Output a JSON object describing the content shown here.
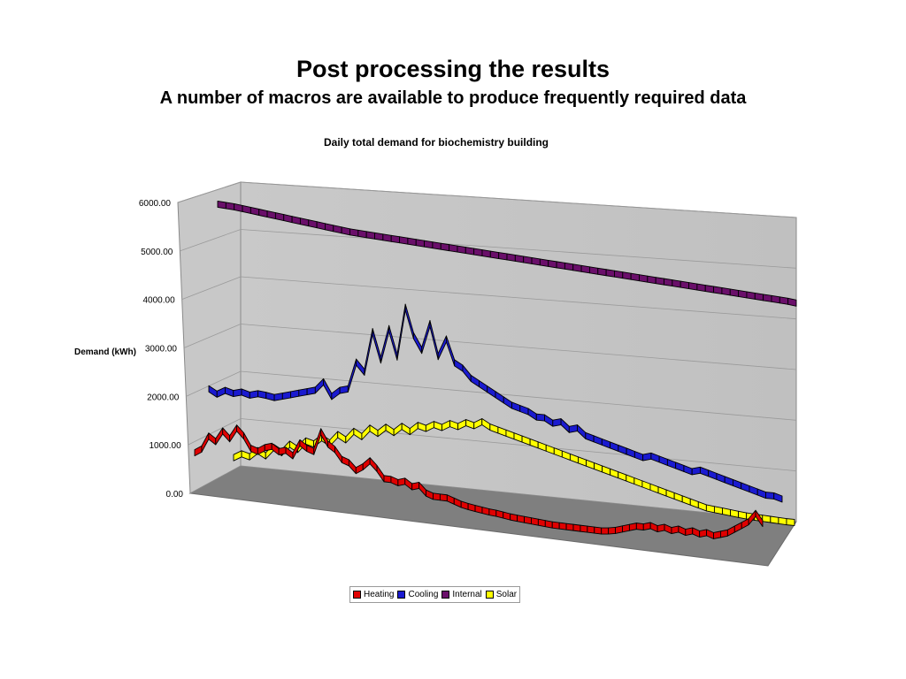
{
  "slide": {
    "title": "Post processing the results",
    "subtitle": "A number of macros are available to produce frequently required data"
  },
  "chart_data": {
    "type": "line",
    "view": "3d",
    "title": "Daily total demand for biochemistry building",
    "xlabel": "",
    "ylabel": "Demand (kWh)",
    "ylim": [
      0,
      6000
    ],
    "yticks": [
      "0.00",
      "1000.00",
      "2000.00",
      "3000.00",
      "4000.00",
      "5000.00",
      "6000.00"
    ],
    "grid": true,
    "legend_position": "bottom",
    "x": "day of year (1–365, tick labels not shown)",
    "series": [
      {
        "name": "Heating",
        "color": "#e00000",
        "values": [
          700,
          800,
          1100,
          1000,
          1250,
          1100,
          1350,
          1200,
          950,
          900,
          1000,
          1050,
          950,
          1000,
          900,
          1200,
          1100,
          1050,
          1500,
          1250,
          1150,
          950,
          900,
          750,
          850,
          1000,
          850,
          650,
          650,
          600,
          650,
          550,
          600,
          450,
          400,
          400,
          400,
          350,
          300,
          270,
          250,
          230,
          210,
          200,
          180,
          160,
          150,
          140,
          130,
          120,
          110,
          100,
          100,
          100,
          100,
          100,
          100,
          100,
          100,
          120,
          150,
          200,
          250,
          300,
          300,
          350,
          300,
          350,
          300,
          350,
          300,
          350,
          300,
          350,
          300,
          350,
          400,
          500,
          600,
          700,
          900,
          700
        ]
      },
      {
        "name": "Cooling",
        "color": "#1a1ad0",
        "values": [
          1900,
          1800,
          1900,
          1850,
          1900,
          1850,
          1900,
          1880,
          1850,
          1900,
          1950,
          2000,
          2050,
          2100,
          2300,
          2000,
          2150,
          2200,
          2800,
          2600,
          3500,
          2900,
          3600,
          3000,
          4100,
          3500,
          3200,
          3800,
          3100,
          3500,
          3000,
          2900,
          2700,
          2600,
          2500,
          2400,
          2300,
          2200,
          2150,
          2100,
          2000,
          2000,
          1900,
          1950,
          1800,
          1850,
          1700,
          1650,
          1600,
          1550,
          1500,
          1450,
          1400,
          1350,
          1400,
          1350,
          1300,
          1250,
          1200,
          1150,
          1200,
          1150,
          1100,
          1050,
          1000,
          950,
          900,
          850,
          800,
          800,
          750
        ]
      },
      {
        "name": "Internal",
        "color": "#6a0f6a",
        "values": [
          5300,
          5290,
          5280,
          5260,
          5240,
          5220,
          5200,
          5180,
          5160,
          5140,
          5120,
          5100,
          5080,
          5060,
          5040,
          5020,
          5000,
          4990,
          4980,
          4970,
          4960,
          4950,
          4940,
          4930,
          4920,
          4910,
          4900,
          4890,
          4880,
          4870,
          4860,
          4850,
          4840,
          4830,
          4820,
          4810,
          4800,
          4790,
          4780,
          4770,
          4760,
          4750,
          4740,
          4730,
          4720,
          4710,
          4700,
          4690,
          4680,
          4670,
          4660,
          4650,
          4640,
          4630,
          4620,
          4610,
          4600,
          4590,
          4580,
          4570,
          4560,
          4550,
          4540,
          4530,
          4520,
          4510,
          4500,
          4490,
          4480,
          4470,
          4450
        ]
      },
      {
        "name": "Solar",
        "color": "#ffff00",
        "values": [
          400,
          500,
          450,
          600,
          500,
          700,
          600,
          800,
          700,
          900,
          850,
          1000,
          900,
          1100,
          1000,
          1200,
          1100,
          1300,
          1200,
          1350,
          1250,
          1400,
          1300,
          1450,
          1400,
          1500,
          1450,
          1550,
          1500,
          1600,
          1550,
          1650,
          1550,
          1500,
          1450,
          1400,
          1350,
          1300,
          1250,
          1200,
          1150,
          1100,
          1050,
          1000,
          950,
          900,
          850,
          800,
          750,
          700,
          650,
          600,
          550,
          500,
          450,
          400,
          350,
          300,
          250,
          200,
          180,
          160,
          140,
          120,
          100,
          90,
          80,
          70,
          60,
          50,
          50
        ]
      }
    ]
  }
}
